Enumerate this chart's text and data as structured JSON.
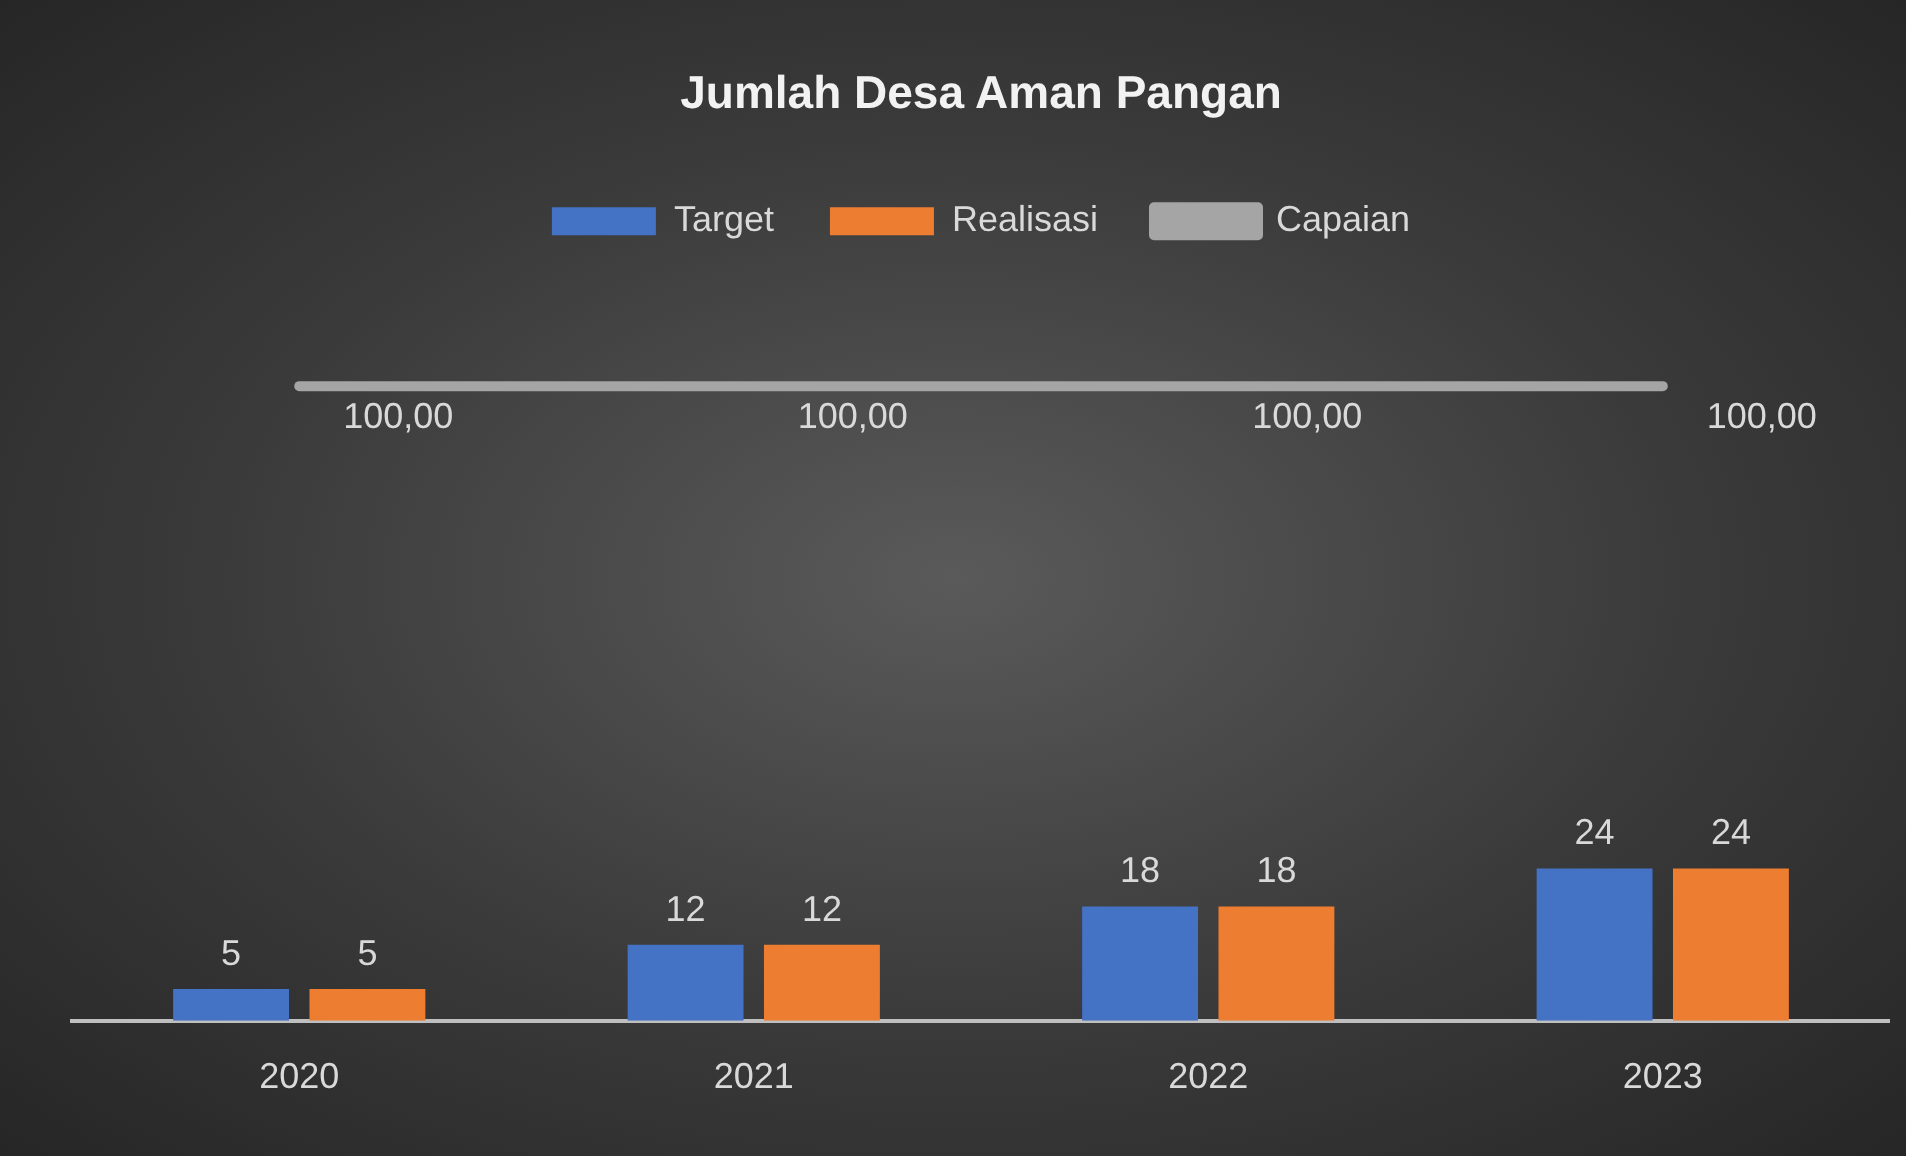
{
  "chart_data": {
    "type": "bar",
    "title": "Jumlah Desa Aman Pangan",
    "categories": [
      "2020",
      "2021",
      "2022",
      "2023"
    ],
    "series": [
      {
        "name": "Target",
        "color": "#4472c4",
        "values": [
          5,
          12,
          18,
          24
        ]
      },
      {
        "name": "Realisasi",
        "color": "#ed7d31",
        "values": [
          5,
          12,
          18,
          24
        ]
      },
      {
        "name": "Capaian",
        "type": "line",
        "color": "#a5a5a5",
        "values": [
          100,
          100,
          100,
          100
        ],
        "value_labels": [
          "100,00",
          "100,00",
          "100,00",
          "100,00"
        ]
      }
    ],
    "tick_labels": "x",
    "data_labels": true,
    "legend": "top",
    "grid": false,
    "marker": "none",
    "line_style": "solid"
  }
}
